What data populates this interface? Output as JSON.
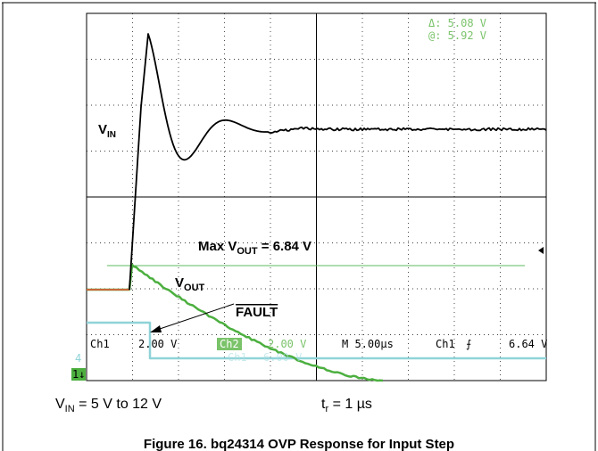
{
  "cursor": {
    "delta": "Δ: 5.08 V",
    "at": "@: 5.92 V"
  },
  "vin_label": {
    "base": "V",
    "sub": "IN"
  },
  "max_vout": {
    "prefix": "Max V",
    "sub": "OUT",
    "suffix": " = 6.84 V"
  },
  "vout_label": {
    "base": "V",
    "sub": "OUT"
  },
  "fault_label": "FAULT",
  "status": {
    "ch1": "Ch1",
    "ch1_scale": "2.00 V",
    "ch2": "Ch2",
    "ch2_scale": "2.00 V",
    "timebase": "M 5.00µs",
    "trigger_source": "Ch1",
    "trigger_symbol": "⨍",
    "trigger_level": "6.64 V",
    "ghost_ch": "Ch1",
    "ghost_scale": "6.00 V",
    "ch4_marker": "4",
    "ch1_marker": "1↓"
  },
  "notes": {
    "vin_range": {
      "base": "V",
      "sub": "IN",
      "suffix": " = 5 V to 12 V"
    },
    "rise_time": {
      "base": "t",
      "sub": "r",
      "suffix": " = 1 µs"
    }
  },
  "caption": "Figure 16. bq24314 OVP Response for Input Step"
}
